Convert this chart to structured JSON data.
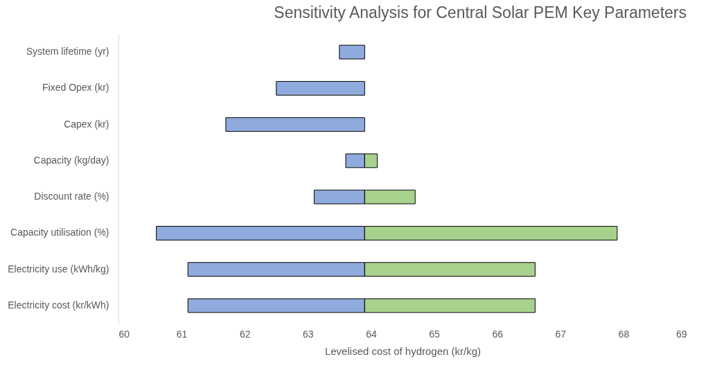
{
  "chart_data": {
    "type": "bar",
    "orientation": "horizontal",
    "title": "Sensitivity Analysis for Central Solar PEM Key Parameters",
    "xlabel": "Levelised cost of hydrogen (kr/kg)",
    "categories": [
      "System lifetime (yr)",
      "Fixed Opex (kr)",
      "Capex (kr)",
      "Capacity (kg/day)",
      "Discount rate (%)",
      "Capacity utilisation (%)",
      "Electricity use (kWh/kg)",
      "Electricity cost (kr/kWh)"
    ],
    "series": [
      {
        "color": "#8faadc",
        "base": [
          63.5,
          62.5,
          61.7,
          63.6,
          63.1,
          60.6,
          61.1,
          61.1
        ],
        "values": [
          0.4,
          1.4,
          2.2,
          0.3,
          0.8,
          3.3,
          2.8,
          2.8
        ]
      },
      {
        "color": "#a9d18e",
        "base": [
          null,
          null,
          null,
          63.9,
          63.9,
          63.9,
          63.9,
          63.9
        ],
        "values": [
          null,
          null,
          null,
          0.2,
          0.8,
          4.0,
          2.7,
          2.7
        ]
      }
    ],
    "xlim": [
      60,
      69
    ],
    "xticks": [
      60,
      61,
      62,
      63,
      64,
      65,
      66,
      67,
      68,
      69
    ]
  }
}
